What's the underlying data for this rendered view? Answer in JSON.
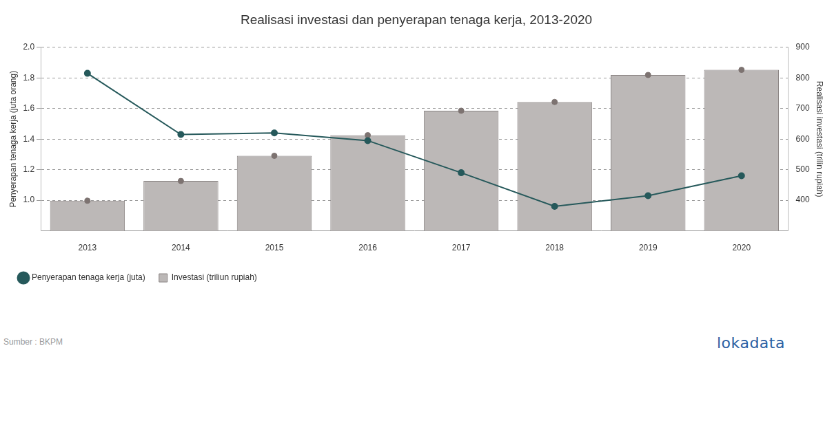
{
  "chart_data": {
    "type": "bar",
    "title": "Realisasi investasi dan penyerapan tenaga kerja, 2013-2020",
    "ylabel": "Penyerapan tenaga kerja (juta orang)",
    "y2label": "Realisasi investasi (trilin rupiah)",
    "categories": [
      "2013",
      "2014",
      "2015",
      "2016",
      "2017",
      "2018",
      "2019",
      "2020"
    ],
    "series": [
      {
        "name": "Penyerapan tenaga kerja (juta)",
        "type": "line",
        "color": "#26595b",
        "marker": "circle",
        "values": [
          1.83,
          1.43,
          1.44,
          1.39,
          1.18,
          0.96,
          1.03,
          1.16
        ]
      },
      {
        "name": "Investasi (triliun rupiah)",
        "type": "bar",
        "color": "#bcb8b7",
        "marker": "circle",
        "axis": "y2",
        "values": [
          398.6,
          463.1,
          545.4,
          612.8,
          692.8,
          721.3,
          809.6,
          826.3
        ]
      }
    ],
    "ylim": [
      0.8,
      2.0
    ],
    "yticks": [
      {
        "value": 1.0,
        "label": "1.0"
      },
      1.2,
      1.4,
      1.6,
      1.8,
      {
        "value": 2.0,
        "label": "2.0"
      }
    ],
    "y2lim": [
      300,
      900
    ],
    "y2ticks": [
      400,
      500,
      600,
      700,
      800,
      900
    ],
    "grid": true,
    "legend": "bottom-left",
    "source": "Sumber : BKPM",
    "brand": "lokadata"
  }
}
